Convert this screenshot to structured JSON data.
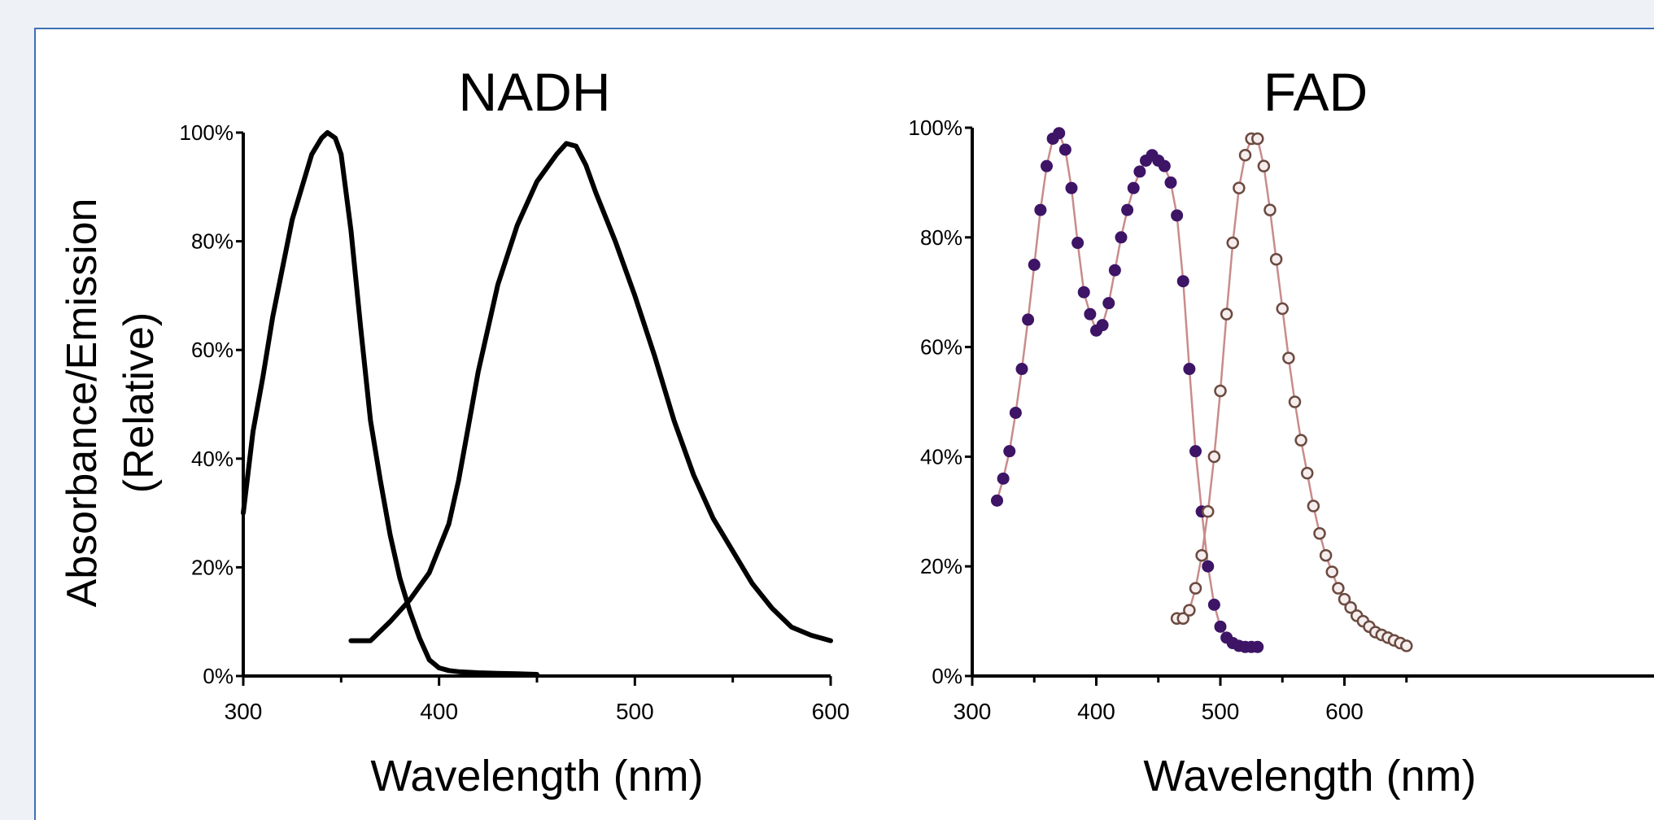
{
  "ylabel_line1": "Absorbance/Emission",
  "ylabel_line2": "(Relative)",
  "chart_data": [
    {
      "type": "line",
      "title": "NADH",
      "xlabel": "Wavelength (nm)",
      "ylabel": "Absorbance/Emission (Relative)",
      "xlim": [
        300,
        600
      ],
      "ylim": [
        0,
        100
      ],
      "xticks": [
        300,
        400,
        500,
        600
      ],
      "yticks": [
        0,
        20,
        40,
        60,
        80,
        100
      ],
      "ytick_labels": [
        "0%",
        "20%",
        "40%",
        "60%",
        "80%",
        "100%"
      ],
      "marker": "none",
      "grid": false,
      "series": [
        {
          "x": [
            300,
            305,
            310,
            315,
            320,
            325,
            330,
            335,
            340,
            343,
            347,
            350,
            355,
            360,
            365,
            370,
            375,
            380,
            385,
            390,
            395,
            400,
            405,
            410,
            420,
            430,
            440,
            450
          ],
          "y": [
            30,
            45,
            55,
            66,
            75,
            84,
            90,
            96,
            99,
            100,
            99,
            96,
            82,
            64,
            47,
            36,
            26,
            18,
            12,
            7,
            3,
            1.5,
            1,
            0.8,
            0.6,
            0.5,
            0.4,
            0.3
          ],
          "color": "#000000"
        },
        {
          "x": [
            355,
            365,
            375,
            385,
            395,
            405,
            410,
            415,
            420,
            430,
            440,
            450,
            460,
            465,
            470,
            475,
            480,
            490,
            500,
            510,
            520,
            530,
            540,
            550,
            560,
            570,
            580,
            590,
            600
          ],
          "y": [
            6.5,
            6.5,
            10,
            14,
            19,
            28,
            36,
            46,
            56,
            72,
            83,
            91,
            96,
            98,
            97.5,
            94,
            89,
            80,
            70,
            59,
            47,
            37,
            29,
            23,
            17,
            12.5,
            9,
            7.5,
            6.5
          ],
          "color": "#000000"
        }
      ]
    },
    {
      "type": "scatter",
      "title": "FAD",
      "xlabel": "Wavelength (nm)",
      "ylabel": "",
      "xlim": [
        300,
        650
      ],
      "ylim": [
        0,
        100
      ],
      "xticks": [
        300,
        400,
        500,
        600
      ],
      "yticks": [
        0,
        20,
        40,
        60,
        80,
        100
      ],
      "ytick_labels": [
        "0%",
        "20%",
        "40%",
        "60%",
        "80%",
        "100%"
      ],
      "grid": false,
      "series": [
        {
          "x": [
            320,
            325,
            330,
            335,
            340,
            345,
            350,
            355,
            360,
            365,
            370,
            375,
            380,
            385,
            390,
            395,
            400,
            405,
            410,
            415,
            420,
            425,
            430,
            435,
            440,
            445,
            450,
            455,
            460,
            465,
            470,
            475,
            480,
            485,
            490,
            495,
            500,
            505,
            510,
            515,
            520,
            525,
            530
          ],
          "y": [
            32,
            36,
            41,
            48,
            56,
            65,
            75,
            85,
            93,
            98,
            99,
            96,
            89,
            79,
            70,
            66,
            63,
            64,
            68,
            74,
            80,
            85,
            89,
            92,
            94,
            95,
            94,
            93,
            90,
            84,
            72,
            56,
            41,
            30,
            20,
            13,
            9,
            7,
            6,
            5.5,
            5.3,
            5.3,
            5.3
          ],
          "color": "#3d1466",
          "marker": "filled-circle"
        },
        {
          "x": [
            465,
            470,
            475,
            480,
            485,
            490,
            495,
            500,
            505,
            510,
            515,
            520,
            525,
            530,
            535,
            540,
            545,
            550,
            555,
            560,
            565,
            570,
            575,
            580,
            585,
            590,
            595,
            600,
            605,
            610,
            615,
            620,
            625,
            630,
            635,
            640,
            645,
            650
          ],
          "y": [
            10.5,
            10.5,
            12,
            16,
            22,
            30,
            40,
            52,
            66,
            79,
            89,
            95,
            98,
            98,
            93,
            85,
            76,
            67,
            58,
            50,
            43,
            37,
            31,
            26,
            22,
            19,
            16,
            14,
            12.5,
            11,
            10,
            9,
            8,
            7.5,
            7,
            6.5,
            6,
            5.5
          ],
          "color": "#8a6a60",
          "marker": "open-circle"
        }
      ]
    }
  ]
}
